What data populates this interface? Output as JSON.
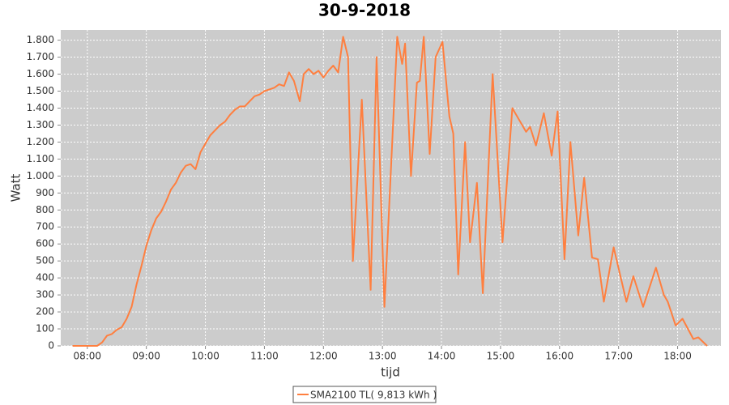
{
  "chart_data": {
    "type": "line",
    "title": "30-9-2018",
    "x_label": "tijd",
    "y_label": "Watt",
    "x": [
      "07:45",
      "08:00",
      "08:10",
      "08:15",
      "08:20",
      "08:25",
      "08:30",
      "08:35",
      "08:40",
      "08:45",
      "08:50",
      "08:55",
      "09:00",
      "09:05",
      "09:10",
      "09:15",
      "09:20",
      "09:25",
      "09:30",
      "09:35",
      "09:40",
      "09:45",
      "09:50",
      "09:55",
      "10:00",
      "10:05",
      "10:10",
      "10:15",
      "10:20",
      "10:25",
      "10:30",
      "10:35",
      "10:40",
      "10:45",
      "10:50",
      "10:55",
      "11:00",
      "11:05",
      "11:10",
      "11:15",
      "11:20",
      "11:25",
      "11:30",
      "11:36",
      "11:40",
      "11:45",
      "11:50",
      "11:55",
      "12:00",
      "12:05",
      "12:10",
      "12:15",
      "12:20",
      "12:25",
      "12:30",
      "12:39",
      "12:48",
      "12:54",
      "13:02",
      "13:15",
      "13:20",
      "13:23",
      "13:29",
      "13:35",
      "13:38",
      "13:42",
      "13:48",
      "13:54",
      "14:01",
      "14:08",
      "14:12",
      "14:17",
      "14:24",
      "14:29",
      "14:36",
      "14:42",
      "14:52",
      "15:02",
      "15:12",
      "15:26",
      "15:30",
      "15:36",
      "15:44",
      "15:52",
      "15:58",
      "16:05",
      "16:11",
      "16:19",
      "16:25",
      "16:33",
      "16:39",
      "16:45",
      "16:55",
      "17:08",
      "17:15",
      "17:25",
      "17:38",
      "17:46",
      "17:50",
      "17:58",
      "18:05",
      "18:16",
      "18:21",
      "18:30"
    ],
    "series": [
      {
        "name": "SMA2100 TL( 9,813 kWh )",
        "color": "#ff7f3f",
        "values": [
          0,
          0,
          0,
          20,
          60,
          70,
          95,
          110,
          160,
          230,
          360,
          470,
          590,
          680,
          750,
          790,
          850,
          920,
          960,
          1020,
          1060,
          1070,
          1040,
          1140,
          1190,
          1240,
          1270,
          1300,
          1320,
          1360,
          1390,
          1410,
          1410,
          1440,
          1470,
          1480,
          1500,
          1510,
          1520,
          1540,
          1530,
          1610,
          1560,
          1440,
          1600,
          1630,
          1600,
          1620,
          1580,
          1620,
          1650,
          1610,
          1820,
          1700,
          500,
          1450,
          330,
          1700,
          230,
          1820,
          1660,
          1780,
          1000,
          1550,
          1560,
          1820,
          1130,
          1700,
          1790,
          1350,
          1250,
          420,
          1200,
          610,
          960,
          310,
          1600,
          610,
          1400,
          1260,
          1290,
          1180,
          1370,
          1120,
          1380,
          510,
          1200,
          650,
          990,
          520,
          510,
          260,
          580,
          260,
          410,
          230,
          460,
          300,
          260,
          120,
          160,
          40,
          50,
          0
        ]
      }
    ],
    "xlim": [
      "07:33",
      "18:44"
    ],
    "xticks": [
      "08:00",
      "09:00",
      "10:00",
      "11:00",
      "12:00",
      "13:00",
      "14:00",
      "15:00",
      "16:00",
      "17:00",
      "18:00"
    ],
    "ylim": [
      0,
      1860
    ],
    "yticks": [
      0,
      100,
      200,
      300,
      400,
      500,
      600,
      700,
      800,
      900,
      {
        "value": 1000,
        "label": "1.000"
      },
      {
        "value": 1100,
        "label": "1.100"
      },
      {
        "value": 1200,
        "label": "1.200"
      },
      {
        "value": 1300,
        "label": "1.300"
      },
      {
        "value": 1400,
        "label": "1.400"
      },
      {
        "value": 1500,
        "label": "1.500"
      },
      {
        "value": 1600,
        "label": "1.600"
      },
      {
        "value": 1700,
        "label": "1.700"
      },
      {
        "value": 1800,
        "label": "1.800"
      }
    ],
    "grid": true,
    "legend": "bottom"
  }
}
